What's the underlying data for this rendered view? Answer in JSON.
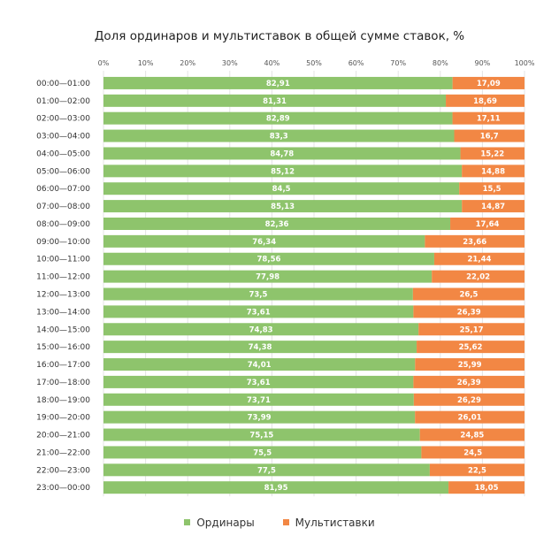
{
  "chart_data": {
    "type": "bar",
    "orientation": "horizontal",
    "stacked": true,
    "title": "Доля ординаров и мультиставок в общей сумме ставок, %",
    "xlim": [
      0,
      100
    ],
    "x_ticks": [
      "0%",
      "10%",
      "20%",
      "30%",
      "40%",
      "50%",
      "60%",
      "70%",
      "80%",
      "90%",
      "100%"
    ],
    "grid": "vertical",
    "legend_position": "bottom",
    "categories": [
      "00:00—01:00",
      "01:00—02:00",
      "02:00—03:00",
      "03:00—04:00",
      "04:00—05:00",
      "05:00—06:00",
      "06:00—07:00",
      "07:00—08:00",
      "08:00—09:00",
      "09:00—10:00",
      "10:00—11:00",
      "11:00—12:00",
      "12:00—13:00",
      "13:00—14:00",
      "14:00—15:00",
      "15:00—16:00",
      "16:00—17:00",
      "17:00—18:00",
      "18:00—19:00",
      "19:00—20:00",
      "20:00—21:00",
      "21:00—22:00",
      "22:00—23:00",
      "23:00—00:00"
    ],
    "series": [
      {
        "name": "Ординары",
        "color": "#8ec46c",
        "values": [
          82.91,
          81.31,
          82.89,
          83.3,
          84.78,
          85.12,
          84.5,
          85.13,
          82.36,
          76.34,
          78.56,
          77.98,
          73.5,
          73.61,
          74.83,
          74.38,
          74.01,
          73.61,
          73.71,
          73.99,
          75.15,
          75.5,
          77.5,
          81.95
        ],
        "labels": [
          "82,91",
          "81,31",
          "82,89",
          "83,3",
          "84,78",
          "85,12",
          "84,5",
          "85,13",
          "82,36",
          "76,34",
          "78,56",
          "77,98",
          "73,5",
          "73,61",
          "74,83",
          "74,38",
          "74,01",
          "73,61",
          "73,71",
          "73,99",
          "75,15",
          "75,5",
          "77,5",
          "81,95"
        ]
      },
      {
        "name": "Мультиставки",
        "color": "#f28744",
        "values": [
          17.09,
          18.69,
          17.11,
          16.7,
          15.22,
          14.88,
          15.5,
          14.87,
          17.64,
          23.66,
          21.44,
          22.02,
          26.5,
          26.39,
          25.17,
          25.62,
          25.99,
          26.39,
          26.29,
          26.01,
          24.85,
          24.5,
          22.5,
          18.05
        ],
        "labels": [
          "17,09",
          "18,69",
          "17,11",
          "16,7",
          "15,22",
          "14,88",
          "15,5",
          "14,87",
          "17,64",
          "23,66",
          "21,44",
          "22,02",
          "26,5",
          "26,39",
          "25,17",
          "25,62",
          "25,99",
          "26,39",
          "26,29",
          "26,01",
          "24,85",
          "24,5",
          "22,5",
          "18,05"
        ]
      }
    ]
  }
}
